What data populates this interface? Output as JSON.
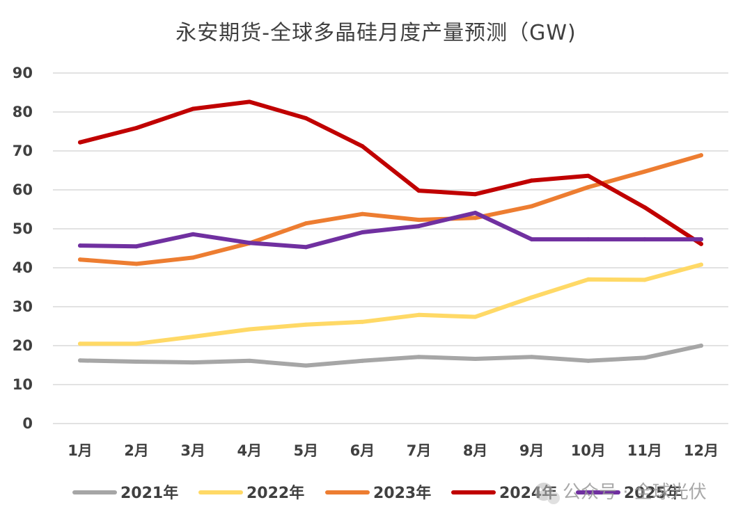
{
  "chart_data": {
    "type": "line",
    "title": "永安期货-全球多晶硅月度产量预测（GW)",
    "categories": [
      "1月",
      "2月",
      "3月",
      "4月",
      "5月",
      "6月",
      "7月",
      "8月",
      "9月",
      "10月",
      "11月",
      "12月"
    ],
    "ylim": [
      0,
      90
    ],
    "yticks": [
      0,
      10,
      20,
      30,
      40,
      50,
      60,
      70,
      80,
      90
    ],
    "grid": true,
    "legend_position": "bottom",
    "xlabel": "",
    "ylabel": "",
    "series": [
      {
        "name": "2021年",
        "color": "#a6a6a6",
        "values": [
          16.2,
          15.9,
          15.7,
          16.1,
          14.9,
          16.1,
          17.1,
          16.6,
          17.1,
          16.1,
          16.9,
          20.0
        ]
      },
      {
        "name": "2022年",
        "color": "#ffd966",
        "values": [
          20.5,
          20.5,
          22.3,
          24.2,
          25.4,
          26.1,
          27.9,
          27.4,
          32.4,
          37.0,
          36.9,
          40.8
        ]
      },
      {
        "name": "2023年",
        "color": "#ed7d31",
        "values": [
          42.1,
          41.0,
          42.6,
          46.3,
          51.4,
          53.8,
          52.3,
          52.8,
          55.8,
          60.7,
          64.7,
          68.9
        ]
      },
      {
        "name": "2024年",
        "color": "#c00000",
        "values": [
          72.2,
          75.9,
          80.8,
          82.6,
          78.4,
          71.2,
          59.8,
          58.9,
          62.4,
          63.6,
          55.5,
          46.1
        ]
      },
      {
        "name": "2025年",
        "color": "#7030a0",
        "values": [
          45.7,
          45.5,
          48.6,
          46.4,
          45.3,
          49.1,
          50.7,
          54.1,
          47.3,
          47.3,
          47.3,
          47.3
        ]
      }
    ]
  },
  "watermark": {
    "text": "公众号 · 全球光伏",
    "icon": "wechat-logo-icon"
  }
}
